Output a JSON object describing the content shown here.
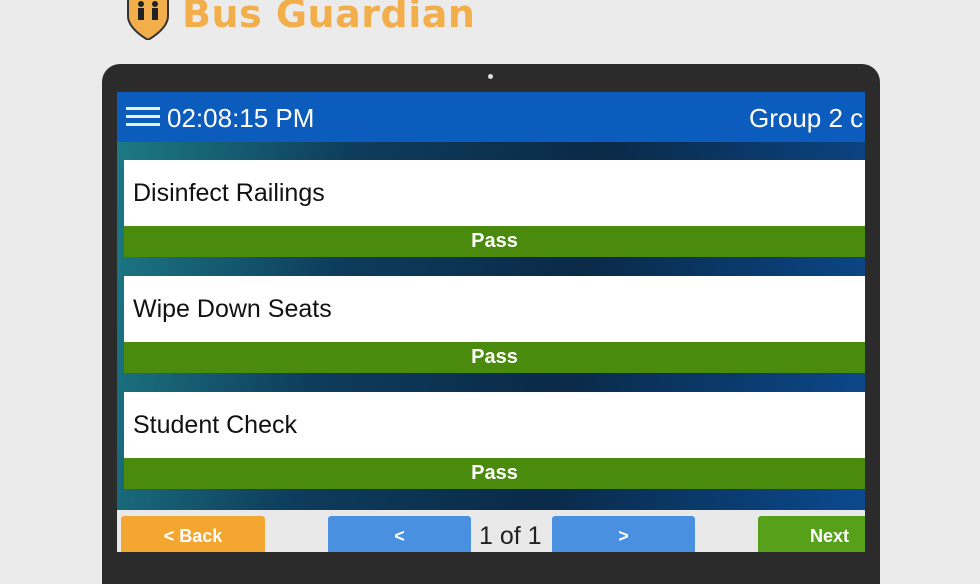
{
  "brand": {
    "name": "Bus Guardian",
    "colors": {
      "brand": "#f2ae4a",
      "header": "#0b5cbc",
      "pass": "#4a8a0c"
    }
  },
  "header": {
    "time": "02:08:15 PM",
    "group": "Group 2 c",
    "menu_icon": "hamburger-icon"
  },
  "items": [
    {
      "label": "Disinfect Railings",
      "status": "Pass"
    },
    {
      "label": "Wipe Down Seats",
      "status": "Pass"
    },
    {
      "label": "Student Check",
      "status": "Pass"
    }
  ],
  "footer": {
    "back": "< Back",
    "prev": "<",
    "page": "1 of 1",
    "next_page": ">",
    "next": "Next"
  }
}
